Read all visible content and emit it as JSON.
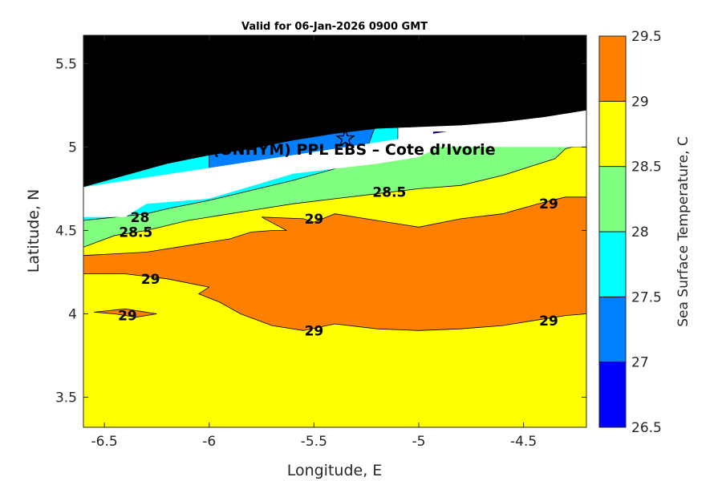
{
  "chart_data": {
    "type": "heatmap",
    "subtype": "filled-contour-map",
    "title": "Valid for 06-Jan-2026 0900 GMT",
    "xlabel": "Longitude, E",
    "ylabel": "Latitude, N",
    "xlim": [
      -6.6,
      -4.2
    ],
    "ylim": [
      3.32,
      5.67
    ],
    "xticks": [
      -6.5,
      -6,
      -5.5,
      -5,
      -4.5
    ],
    "xtick_labels": [
      "-6.5",
      "-6",
      "-5.5",
      "-5",
      "-4.5"
    ],
    "yticks": [
      3.5,
      4,
      4.5,
      5,
      5.5
    ],
    "ytick_labels": [
      "3.5",
      "4",
      "4.5",
      "5",
      "5.5"
    ],
    "grid": false,
    "annotation": "A (ONHYM) PPL EBS  – Cote d’Ivorie",
    "annotation_location": [
      -5.35,
      5.05
    ],
    "colorbar": {
      "label": "Sea Surface Temperature, C",
      "levels": [
        26.5,
        27,
        27.5,
        28,
        28.5,
        29,
        29.5
      ],
      "tick_labels": [
        "26.5",
        "27",
        "27.5",
        "28",
        "28.5",
        "29",
        "29.5"
      ],
      "colors": [
        "#0000ff",
        "#0080ff",
        "#00ffff",
        "#80ff80",
        "#ffff00",
        "#ff8000"
      ]
    },
    "colors": {
      "land": "#000000",
      "nodata": "#ffffff",
      "contour_line": "#000000"
    },
    "regions": [
      {
        "level": 28.5,
        "color": "#ffff00",
        "points": [
          [
            -6.6,
            3.32
          ],
          [
            -4.2,
            3.32
          ],
          [
            -4.2,
            5.0
          ],
          [
            -6.6,
            5.0
          ]
        ]
      },
      {
        "level": 28.5,
        "color": "#80ff80",
        "points": [
          [
            -6.6,
            4.4
          ],
          [
            -6.45,
            4.47
          ],
          [
            -6.3,
            4.5
          ],
          [
            -6.1,
            4.56
          ],
          [
            -5.95,
            4.59
          ],
          [
            -5.8,
            4.62
          ],
          [
            -5.6,
            4.66
          ],
          [
            -5.4,
            4.69
          ],
          [
            -5.2,
            4.72
          ],
          [
            -5.0,
            4.75
          ],
          [
            -4.8,
            4.77
          ],
          [
            -4.6,
            4.83
          ],
          [
            -4.45,
            4.89
          ],
          [
            -4.35,
            4.93
          ],
          [
            -4.3,
            4.99
          ],
          [
            -4.2,
            5.02
          ],
          [
            -4.2,
            5.12
          ],
          [
            -6.6,
            4.92
          ]
        ]
      },
      {
        "level": 28,
        "color": "#00ffff",
        "points": [
          [
            -6.6,
            4.56
          ],
          [
            -6.3,
            4.6
          ],
          [
            -6.2,
            4.63
          ],
          [
            -6.0,
            4.68
          ],
          [
            -5.8,
            4.74
          ],
          [
            -5.6,
            4.8
          ],
          [
            -5.4,
            4.87
          ],
          [
            -5.2,
            4.94
          ],
          [
            -5.1,
            4.97
          ],
          [
            -5.1,
            5.2
          ],
          [
            -6.6,
            5.0
          ]
        ]
      },
      {
        "level": 27.5,
        "color": "#0080ff",
        "points": [
          [
            -6.0,
            4.69
          ],
          [
            -5.95,
            4.75
          ],
          [
            -5.8,
            4.79
          ],
          [
            -5.65,
            4.84
          ],
          [
            -5.5,
            4.88
          ],
          [
            -5.4,
            4.93
          ],
          [
            -5.25,
            4.98
          ],
          [
            -5.2,
            5.15
          ],
          [
            -6.0,
            5.0
          ]
        ]
      },
      {
        "level": 27.5,
        "color": "#0080ff",
        "points": [
          [
            -4.93,
            5.0
          ],
          [
            -4.82,
            5.02
          ],
          [
            -4.79,
            5.05
          ],
          [
            -4.81,
            5.09
          ],
          [
            -4.92,
            5.09
          ]
        ]
      },
      {
        "level": 27,
        "color": "#0000ff",
        "points": [
          [
            -4.93,
            5.06
          ],
          [
            -4.86,
            5.07
          ],
          [
            -4.84,
            5.09
          ],
          [
            -4.93,
            5.09
          ]
        ]
      },
      {
        "level": 29,
        "color": "#ff8000",
        "points": [
          [
            -6.6,
            4.35
          ],
          [
            -6.3,
            4.37
          ],
          [
            -6.1,
            4.41
          ],
          [
            -5.9,
            4.45
          ],
          [
            -5.8,
            4.49
          ],
          [
            -5.7,
            4.5
          ],
          [
            -5.63,
            4.5
          ],
          [
            -5.75,
            4.58
          ],
          [
            -5.55,
            4.57
          ],
          [
            -5.5,
            4.55
          ],
          [
            -5.4,
            4.6
          ],
          [
            -5.2,
            4.56
          ],
          [
            -5.0,
            4.52
          ],
          [
            -4.8,
            4.57
          ],
          [
            -4.6,
            4.6
          ],
          [
            -4.4,
            4.67
          ],
          [
            -4.3,
            4.7
          ],
          [
            -4.2,
            4.7
          ],
          [
            -4.2,
            4.0
          ],
          [
            -4.3,
            3.99
          ],
          [
            -4.45,
            3.96
          ],
          [
            -4.6,
            3.93
          ],
          [
            -4.8,
            3.91
          ],
          [
            -5.0,
            3.9
          ],
          [
            -5.2,
            3.91
          ],
          [
            -5.4,
            3.94
          ],
          [
            -5.55,
            3.9
          ],
          [
            -5.7,
            3.93
          ],
          [
            -5.85,
            4.0
          ],
          [
            -5.95,
            4.07
          ],
          [
            -6.05,
            4.12
          ],
          [
            -6.0,
            4.16
          ],
          [
            -6.2,
            4.21
          ],
          [
            -6.4,
            4.24
          ],
          [
            -6.6,
            4.24
          ]
        ]
      },
      {
        "level": 29,
        "color": "#ff8000",
        "points": [
          [
            -6.55,
            4.01
          ],
          [
            -6.45,
            4.0
          ],
          [
            -6.35,
            3.98
          ],
          [
            -6.25,
            4.0
          ],
          [
            -6.4,
            4.03
          ]
        ]
      },
      {
        "level": null,
        "color": "#ffffff",
        "points": [
          [
            -6.6,
            4.58
          ],
          [
            -6.4,
            4.58
          ],
          [
            -6.3,
            4.66
          ],
          [
            -6.0,
            4.69
          ],
          [
            -5.6,
            4.84
          ],
          [
            -5.2,
            4.9
          ],
          [
            -5.0,
            4.94
          ],
          [
            -4.9,
            5.0
          ],
          [
            -4.2,
            5.0
          ],
          [
            -4.2,
            5.22
          ],
          [
            -6.6,
            4.76
          ]
        ]
      },
      {
        "level": null,
        "color": "#000000",
        "points": [
          [
            -6.6,
            5.67
          ],
          [
            -4.2,
            5.67
          ],
          [
            -4.2,
            5.22
          ],
          [
            -4.4,
            5.18
          ],
          [
            -4.6,
            5.15
          ],
          [
            -4.8,
            5.13
          ],
          [
            -5.0,
            5.12
          ],
          [
            -5.2,
            5.11
          ],
          [
            -5.4,
            5.08
          ],
          [
            -5.6,
            5.04
          ],
          [
            -5.8,
            4.99
          ],
          [
            -6.0,
            4.95
          ],
          [
            -6.2,
            4.9
          ],
          [
            -6.4,
            4.83
          ],
          [
            -6.6,
            4.76
          ]
        ]
      }
    ],
    "contour_labels": [
      {
        "text": "28",
        "x": -6.33,
        "y": 4.58
      },
      {
        "text": "28.5",
        "x": -6.35,
        "y": 4.49
      },
      {
        "text": "28.5",
        "x": -5.14,
        "y": 4.73
      },
      {
        "text": "29",
        "x": -5.5,
        "y": 4.57
      },
      {
        "text": "29",
        "x": -4.38,
        "y": 4.66
      },
      {
        "text": "29",
        "x": -6.28,
        "y": 4.21
      },
      {
        "text": "29",
        "x": -6.39,
        "y": 3.99
      },
      {
        "text": "29",
        "x": -5.5,
        "y": 3.9
      },
      {
        "text": "29",
        "x": -4.38,
        "y": 3.96
      }
    ]
  }
}
